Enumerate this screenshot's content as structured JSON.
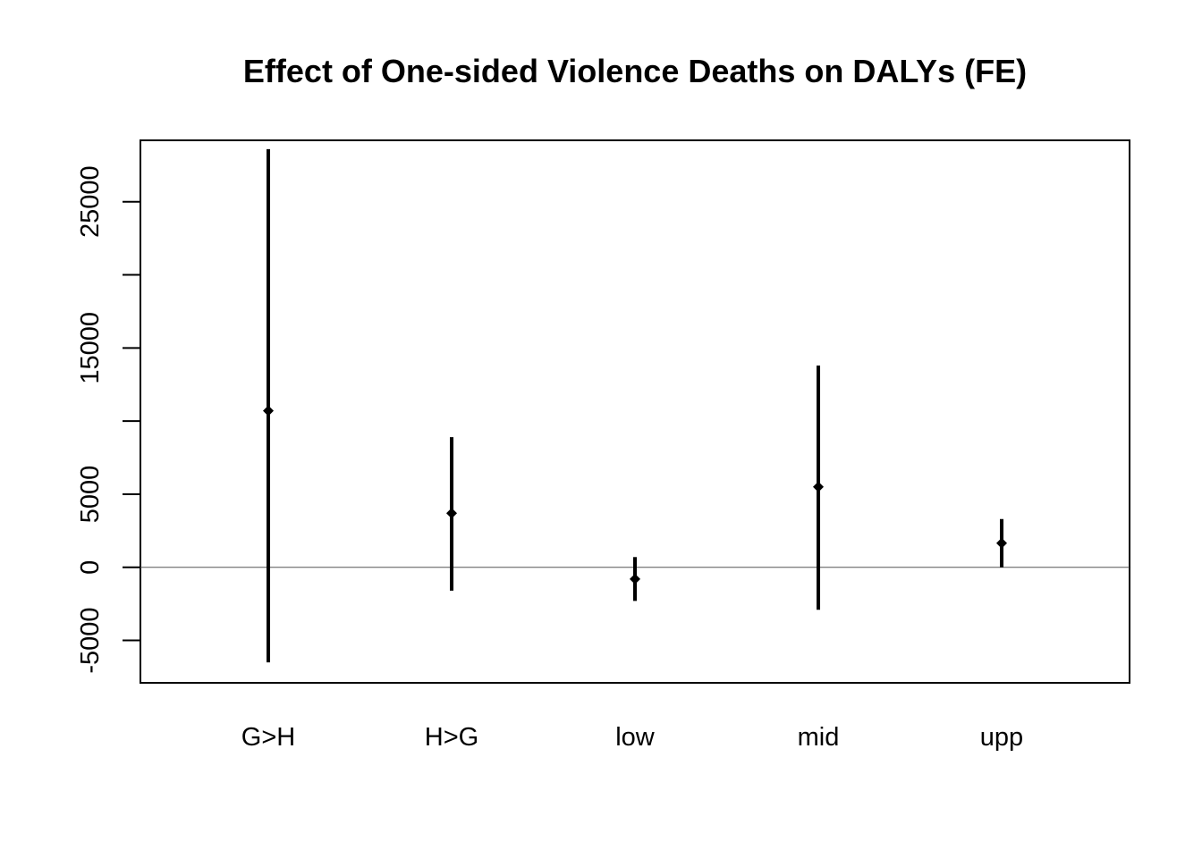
{
  "chart_data": {
    "type": "scatter",
    "title": "Effect of One-sided Violence Deaths on DALYs (FE)",
    "xlabel": "",
    "ylabel": "",
    "categories": [
      "G>H",
      "H>G",
      "low",
      "mid",
      "upp"
    ],
    "estimates": [
      10700,
      3700,
      -800,
      5500,
      1650
    ],
    "ci_lower": [
      -6500,
      -1600,
      -2300,
      -2900,
      0
    ],
    "ci_upper": [
      28600,
      8900,
      700,
      13800,
      3300
    ],
    "ylim": [
      -7900,
      29200
    ],
    "yticks": [
      -5000,
      0,
      5000,
      10000,
      15000,
      20000,
      25000
    ],
    "ytick_labels": [
      "-5000",
      "0",
      "5000",
      "",
      "15000",
      "",
      "25000"
    ],
    "reference_line_y": 0,
    "grid": false,
    "legend": "none",
    "colors": {
      "marks": "#000000",
      "reference_line": "#555555"
    }
  }
}
